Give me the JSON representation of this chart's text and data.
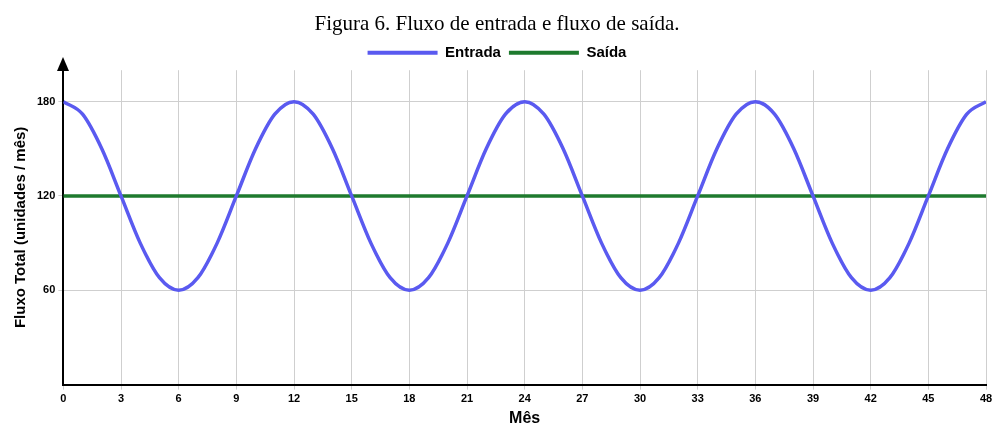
{
  "chart_data": {
    "type": "line",
    "title": "Figura 6. Fluxo de entrada e fluxo de saída.",
    "xlabel": "Mês",
    "ylabel": "Fluxo Total (unidades / mês)",
    "xlim": [
      0,
      48
    ],
    "xticks": [
      0,
      3,
      6,
      9,
      12,
      15,
      18,
      21,
      24,
      27,
      30,
      33,
      36,
      39,
      42,
      45,
      48
    ],
    "ylim": [
      0,
      200
    ],
    "yticks": [
      60,
      120,
      180
    ],
    "grid": true,
    "legend": "top",
    "line_style": "solid",
    "marker": "none",
    "series": [
      {
        "name": "Entrada",
        "color": "#5a5af0",
        "x": [
          0,
          1,
          2,
          3,
          4,
          5,
          6,
          7,
          8,
          9,
          10,
          11,
          12,
          13,
          14,
          15,
          16,
          17,
          18,
          19,
          20,
          21,
          22,
          23,
          24,
          25,
          26,
          27,
          28,
          29,
          30,
          31,
          32,
          33,
          34,
          35,
          36,
          37,
          38,
          39,
          40,
          41,
          42,
          43,
          44,
          45,
          46,
          47,
          48
        ],
        "values": [
          180,
          172,
          150,
          120,
          90,
          68,
          60,
          68,
          90,
          120,
          150,
          172,
          180,
          172,
          150,
          120,
          90,
          68,
          60,
          68,
          90,
          120,
          150,
          172,
          180,
          172,
          150,
          120,
          90,
          68,
          60,
          68,
          90,
          120,
          150,
          172,
          180,
          172,
          150,
          120,
          90,
          68,
          60,
          68,
          90,
          120,
          150,
          172,
          180
        ]
      },
      {
        "name": "Saída",
        "color": "#1e7a2e",
        "x": [
          0,
          48
        ],
        "values": [
          120,
          120
        ]
      }
    ]
  }
}
